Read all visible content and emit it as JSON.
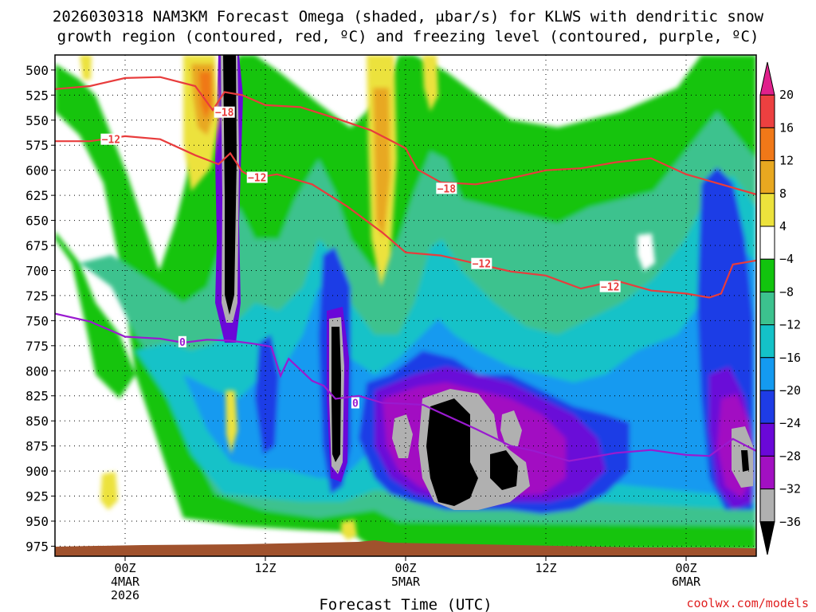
{
  "chart_data": {
    "type": "heatmap",
    "title_line1": "2026030318 NAM3KM Forecast Omega (shaded, μbar/s) for KLWS with dendritic snow",
    "title_line2": "growth region (contoured, red, ºC) and freezing level (contoured, purple, ºC)",
    "xlabel": "Forecast Time (UTC)",
    "ylabel": "",
    "y_reverse": true,
    "ylim": [
      985,
      485
    ],
    "y_ticks": [
      500,
      525,
      550,
      575,
      600,
      625,
      650,
      675,
      700,
      725,
      750,
      775,
      800,
      825,
      850,
      875,
      900,
      925,
      950,
      975
    ],
    "x_range_hours": [
      -6,
      54
    ],
    "x_ticks": [
      {
        "hour": 0,
        "lines": [
          "00Z",
          "4MAR",
          "2026"
        ]
      },
      {
        "hour": 12,
        "lines": [
          "12Z"
        ]
      },
      {
        "hour": 24,
        "lines": [
          "00Z",
          "5MAR"
        ]
      },
      {
        "hour": 36,
        "lines": [
          "12Z"
        ]
      },
      {
        "hour": 48,
        "lines": [
          "00Z",
          "6MAR"
        ]
      }
    ],
    "colorbar": {
      "labels": [
        "20",
        "16",
        "12",
        "8",
        "4",
        "−4",
        "−8",
        "−12",
        "−16",
        "−20",
        "−24",
        "−28",
        "−32",
        "−36"
      ],
      "colors": [
        "#e0208c",
        "#ec4040",
        "#f07818",
        "#e8a820",
        "#ece23c",
        "#ffffff",
        "#12c40e",
        "#3cc28e",
        "#14c2c8",
        "#149af0",
        "#1e3ce6",
        "#6a08d8",
        "#a210c2",
        "#b0b0b0",
        "#000000"
      ]
    },
    "series": [
      {
        "name": "dendritic snow growth -18C",
        "color": "#e83c3c",
        "label": "−18",
        "points": [
          [
            -6,
            519
          ],
          [
            -3,
            516
          ],
          [
            0,
            508
          ],
          [
            3,
            507
          ],
          [
            6,
            516
          ],
          [
            7.5,
            540
          ],
          [
            8.5,
            522
          ],
          [
            10,
            525
          ],
          [
            12,
            535
          ],
          [
            15,
            537
          ],
          [
            18,
            548
          ],
          [
            21,
            560
          ],
          [
            24,
            578
          ],
          [
            25,
            599
          ],
          [
            27,
            612
          ],
          [
            30,
            614
          ],
          [
            33,
            608
          ],
          [
            36,
            600
          ],
          [
            39,
            598
          ],
          [
            42,
            592
          ],
          [
            45,
            588
          ],
          [
            48,
            604
          ],
          [
            51,
            614
          ],
          [
            54,
            624
          ]
        ]
      },
      {
        "name": "dendritic snow growth -12C",
        "color": "#e83c3c",
        "label": "−12",
        "points": [
          [
            -6,
            571
          ],
          [
            -3,
            571
          ],
          [
            0,
            566
          ],
          [
            3,
            569
          ],
          [
            6,
            585
          ],
          [
            8,
            594
          ],
          [
            9,
            583
          ],
          [
            10,
            601
          ],
          [
            11,
            608
          ],
          [
            13,
            604
          ],
          [
            16,
            614
          ],
          [
            19,
            636
          ],
          [
            22,
            662
          ],
          [
            24,
            682
          ],
          [
            27,
            685
          ],
          [
            30,
            693
          ],
          [
            33,
            701
          ],
          [
            36,
            705
          ],
          [
            39,
            718
          ],
          [
            42,
            710
          ],
          [
            45,
            720
          ],
          [
            48,
            723
          ],
          [
            50,
            727
          ],
          [
            51,
            723
          ],
          [
            52,
            694
          ],
          [
            54,
            690
          ]
        ]
      },
      {
        "name": "freezing level 0C",
        "color": "#9a1ad0",
        "label": "0",
        "points": [
          [
            -6,
            743
          ],
          [
            -3,
            751
          ],
          [
            0,
            766
          ],
          [
            3,
            768
          ],
          [
            5,
            772
          ],
          [
            7,
            769
          ],
          [
            9,
            770
          ],
          [
            11,
            773
          ],
          [
            12.5,
            776
          ],
          [
            13.3,
            805
          ],
          [
            14,
            788
          ],
          [
            16,
            810
          ],
          [
            17,
            815
          ],
          [
            18,
            828
          ],
          [
            20,
            825
          ],
          [
            22,
            832
          ],
          [
            24,
            833
          ],
          [
            25.5,
            834
          ],
          [
            27,
            842
          ],
          [
            30,
            858
          ],
          [
            33,
            875
          ],
          [
            35,
            880
          ],
          [
            38,
            890
          ],
          [
            42,
            882
          ],
          [
            45,
            879
          ],
          [
            48,
            884
          ],
          [
            50,
            885
          ],
          [
            52,
            868
          ],
          [
            54,
            880
          ]
        ]
      }
    ],
    "contour_labels": [
      {
        "text": "−18",
        "hour": 8.5,
        "p": 542,
        "color": "#e83c3c"
      },
      {
        "text": "−12",
        "hour": -1.2,
        "p": 569,
        "color": "#e83c3c"
      },
      {
        "text": "−12",
        "hour": 11.3,
        "p": 607,
        "color": "#e83c3c"
      },
      {
        "text": "−18",
        "hour": 27.5,
        "p": 618,
        "color": "#e83c3c"
      },
      {
        "text": "−12",
        "hour": 30.5,
        "p": 693,
        "color": "#e83c3c"
      },
      {
        "text": "−12",
        "hour": 41.5,
        "p": 716,
        "color": "#e83c3c"
      },
      {
        "text": "0",
        "hour": 4.9,
        "p": 771,
        "color": "#9a1ad0"
      },
      {
        "text": "0",
        "hour": 19.7,
        "p": 832,
        "color": "#9a1ad0"
      }
    ]
  },
  "credit": "coolwx.com/models"
}
